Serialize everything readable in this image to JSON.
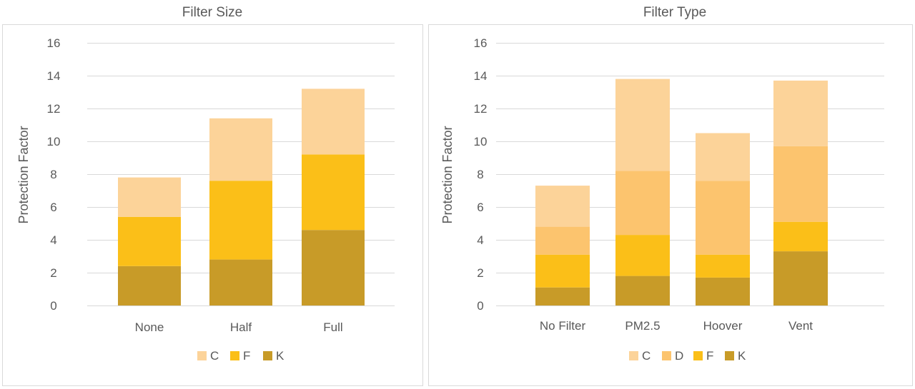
{
  "chart_data": [
    {
      "type": "bar",
      "stacked": true,
      "title": "Filter Size",
      "ylabel": "Protection Factor",
      "xlabel": "",
      "ylim": [
        0,
        16
      ],
      "yticks": [
        0,
        2,
        4,
        6,
        8,
        10,
        12,
        14,
        16
      ],
      "categories": [
        "None",
        "Half",
        "Full"
      ],
      "series": [
        {
          "name": "K",
          "color": "#c89b28",
          "values": [
            2.4,
            2.8,
            4.6
          ]
        },
        {
          "name": "F",
          "color": "#fbbf18",
          "values": [
            3.0,
            4.8,
            4.6
          ]
        },
        {
          "name": "C",
          "color": "#fcd399",
          "values": [
            2.4,
            3.8,
            4.0
          ]
        }
      ],
      "legend": {
        "position": "bottom",
        "order": [
          "C",
          "F",
          "K"
        ]
      },
      "grid": true
    },
    {
      "type": "bar",
      "stacked": true,
      "title": "Filter Type",
      "ylabel": "Protection Factor",
      "xlabel": "",
      "ylim": [
        0,
        16
      ],
      "yticks": [
        0,
        2,
        4,
        6,
        8,
        10,
        12,
        14,
        16
      ],
      "categories": [
        "No Filter",
        "PM2.5",
        "Hoover",
        "Vent"
      ],
      "series": [
        {
          "name": "K",
          "color": "#c89b28",
          "values": [
            1.1,
            1.8,
            1.7,
            3.3
          ]
        },
        {
          "name": "F",
          "color": "#fbbf18",
          "values": [
            2.0,
            2.5,
            1.4,
            1.8
          ]
        },
        {
          "name": "D",
          "color": "#fcc46e",
          "values": [
            1.7,
            3.9,
            4.5,
            4.6
          ]
        },
        {
          "name": "C",
          "color": "#fcd399",
          "values": [
            2.5,
            5.6,
            2.9,
            4.0
          ]
        }
      ],
      "legend": {
        "position": "bottom",
        "order": [
          "C",
          "D",
          "F",
          "K"
        ]
      },
      "grid": true
    }
  ]
}
